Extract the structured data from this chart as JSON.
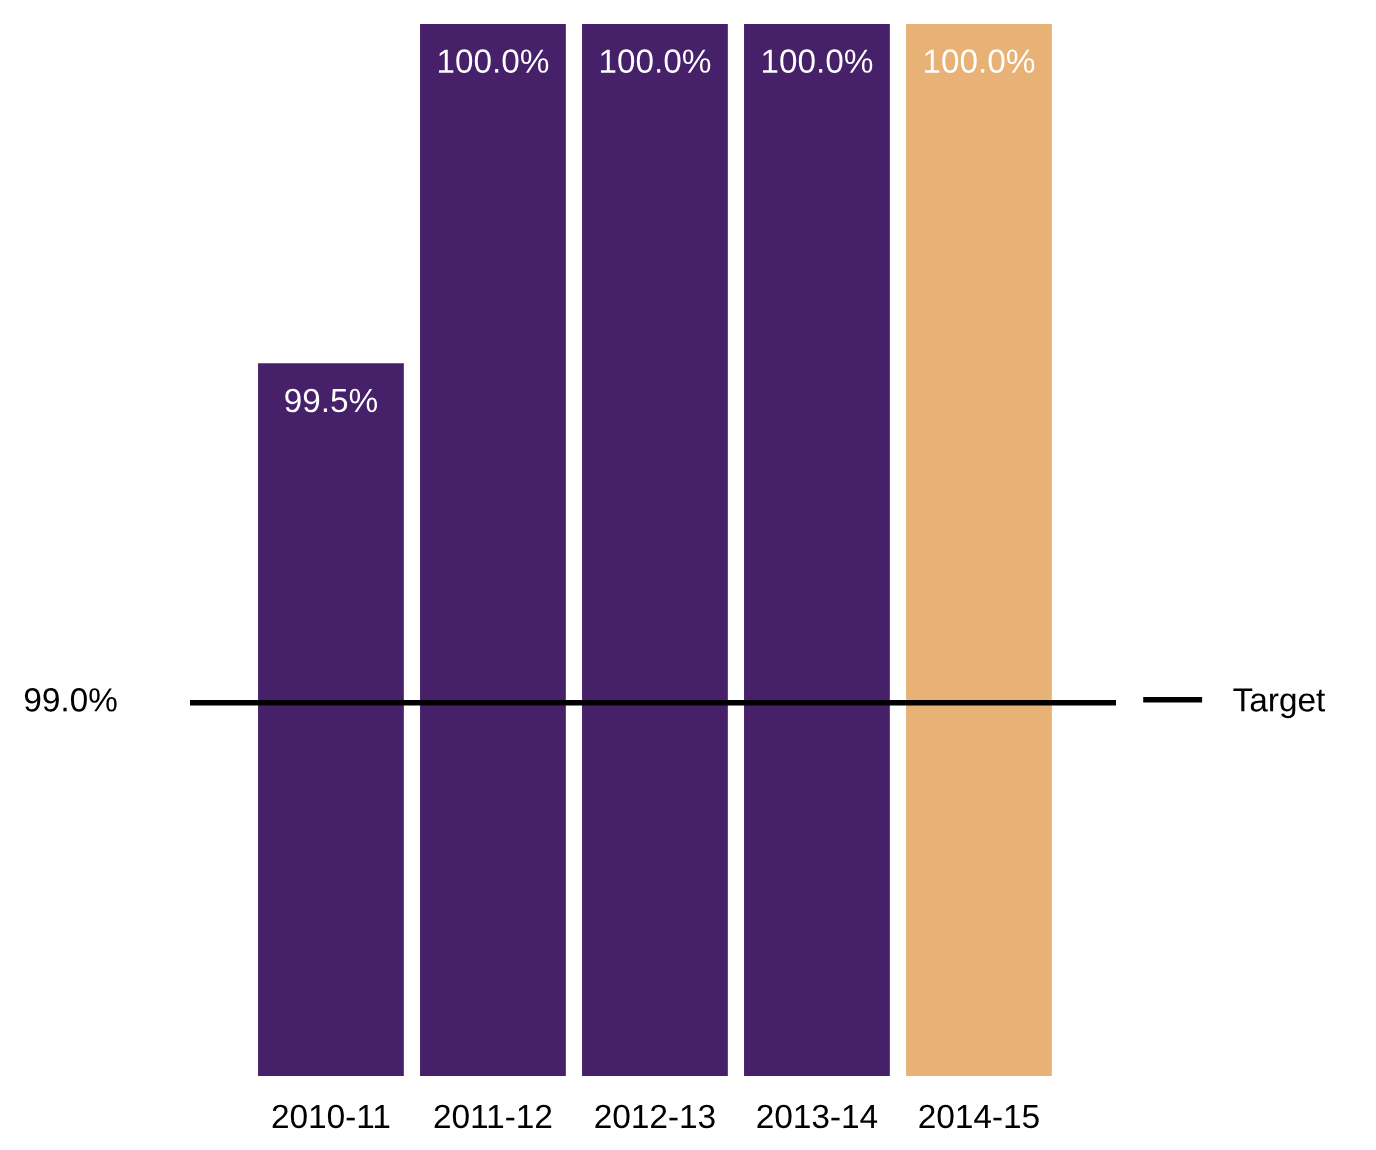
{
  "chart_data": {
    "type": "bar",
    "categories": [
      "2010-11",
      "2011-12",
      "2012-13",
      "2013-14",
      "2014-15"
    ],
    "values": [
      99.5,
      100.0,
      100.0,
      100.0,
      100.0
    ],
    "value_labels": [
      "99.5%",
      "100.0%",
      "100.0%",
      "100.0%",
      "100.0%"
    ],
    "colors": [
      "#47206a",
      "#47206a",
      "#47206a",
      "#47206a",
      "#e8b176"
    ],
    "ref_lines": [
      {
        "axis": "y",
        "value": 99.0,
        "label": "Target",
        "color": "#000000",
        "line_style": "solid"
      }
    ],
    "annotations": [
      "99.0%"
    ],
    "legend": "right"
  }
}
